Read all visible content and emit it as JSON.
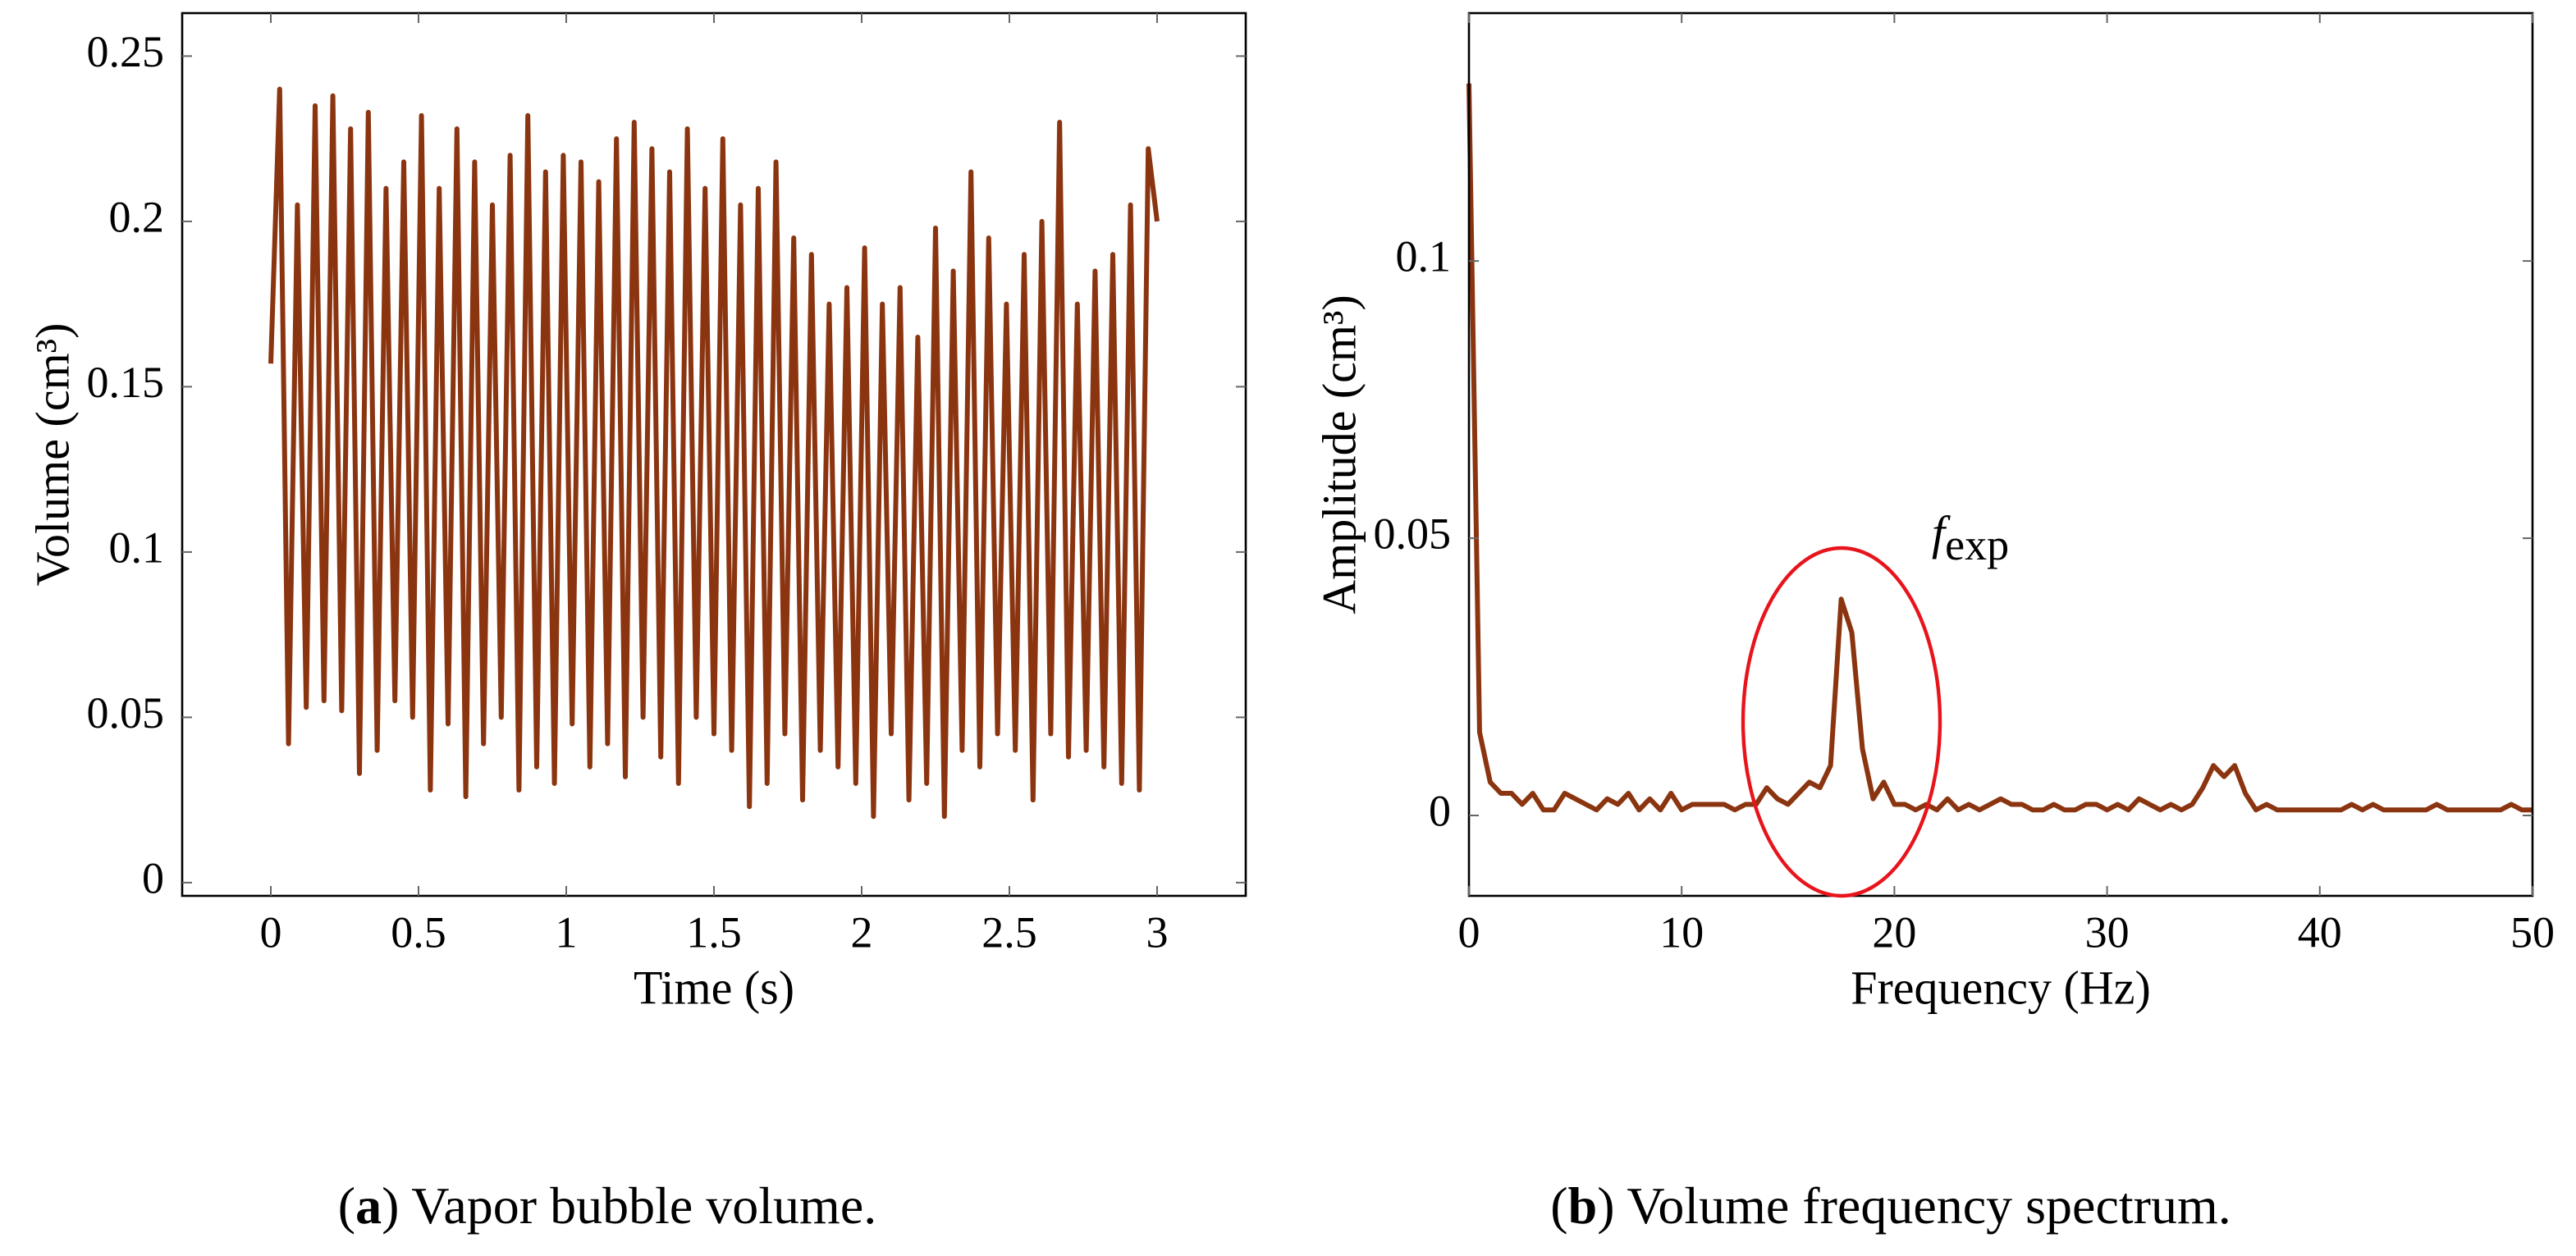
{
  "chart_data": [
    {
      "type": "line",
      "xlabel": "Time (s)",
      "ylabel": "Volume (cm³)",
      "color": "#8b3410",
      "caption": [
        "(",
        "a",
        ") Vapor bubble volume."
      ],
      "xlim": [
        -0.3,
        3.3
      ],
      "ylim": [
        -0.004,
        0.263
      ],
      "xticks": [
        0,
        0.5,
        1,
        1.5,
        2,
        2.5,
        3
      ],
      "yticks": [
        0,
        0.05,
        0.1,
        0.15,
        0.2,
        0.25
      ],
      "x": [
        0,
        0.03,
        0.06,
        0.09,
        0.12,
        0.15,
        0.18,
        0.21,
        0.24,
        0.27,
        0.3,
        0.33,
        0.36,
        0.39,
        0.42,
        0.45,
        0.48,
        0.51,
        0.54,
        0.57,
        0.6,
        0.63,
        0.66,
        0.69,
        0.72,
        0.75,
        0.78,
        0.81,
        0.84,
        0.87,
        0.9,
        0.93,
        0.96,
        0.99,
        1.02,
        1.05,
        1.08,
        1.11,
        1.14,
        1.17,
        1.2,
        1.23,
        1.26,
        1.29,
        1.32,
        1.35,
        1.38,
        1.41,
        1.44,
        1.47,
        1.5,
        1.53,
        1.56,
        1.59,
        1.62,
        1.65,
        1.68,
        1.71,
        1.74,
        1.77,
        1.8,
        1.83,
        1.86,
        1.89,
        1.92,
        1.95,
        1.98,
        2.01,
        2.04,
        2.07,
        2.1,
        2.13,
        2.16,
        2.19,
        2.22,
        2.25,
        2.28,
        2.31,
        2.34,
        2.37,
        2.4,
        2.43,
        2.46,
        2.49,
        2.52,
        2.55,
        2.58,
        2.61,
        2.64,
        2.67,
        2.7,
        2.73,
        2.76,
        2.79,
        2.82,
        2.85,
        2.88,
        2.91,
        2.94,
        2.97,
        3
      ],
      "values": [
        0.157,
        0.24,
        0.042,
        0.205,
        0.053,
        0.235,
        0.055,
        0.238,
        0.052,
        0.228,
        0.033,
        0.233,
        0.04,
        0.21,
        0.055,
        0.218,
        0.05,
        0.232,
        0.028,
        0.21,
        0.048,
        0.228,
        0.026,
        0.218,
        0.042,
        0.205,
        0.05,
        0.22,
        0.028,
        0.232,
        0.035,
        0.215,
        0.03,
        0.22,
        0.048,
        0.218,
        0.035,
        0.212,
        0.042,
        0.225,
        0.032,
        0.23,
        0.05,
        0.222,
        0.038,
        0.215,
        0.03,
        0.228,
        0.05,
        0.21,
        0.045,
        0.225,
        0.04,
        0.205,
        0.023,
        0.21,
        0.03,
        0.218,
        0.045,
        0.195,
        0.025,
        0.19,
        0.04,
        0.175,
        0.035,
        0.18,
        0.03,
        0.192,
        0.02,
        0.175,
        0.045,
        0.18,
        0.025,
        0.165,
        0.03,
        0.198,
        0.02,
        0.185,
        0.04,
        0.215,
        0.035,
        0.195,
        0.045,
        0.175,
        0.04,
        0.19,
        0.025,
        0.2,
        0.045,
        0.23,
        0.038,
        0.175,
        0.04,
        0.185,
        0.035,
        0.19,
        0.03,
        0.205,
        0.028,
        0.222,
        0.2
      ]
    },
    {
      "type": "line",
      "xlabel": "Frequency (Hz)",
      "ylabel": "Amplitude (cm³)",
      "color": "#8b3410",
      "caption": [
        "(",
        "b",
        ") Volume frequency spectrum."
      ],
      "annotation": "f",
      "annotation_subscript": "exp",
      "xlim": [
        0,
        50
      ],
      "ylim": [
        -0.0145,
        0.1447
      ],
      "xticks": [
        0,
        10,
        20,
        30,
        40,
        50
      ],
      "yticks": [
        0,
        0.05,
        0.1
      ],
      "x": [
        0,
        0.5,
        1,
        1.5,
        2,
        2.5,
        3,
        3.5,
        4,
        4.5,
        5,
        5.5,
        6,
        6.5,
        7,
        7.5,
        8,
        8.5,
        9,
        9.5,
        10,
        10.5,
        11,
        11.5,
        12,
        12.5,
        13,
        13.5,
        14,
        14.5,
        15,
        15.5,
        16,
        16.5,
        17,
        17.5,
        18,
        18.5,
        19,
        19.5,
        20,
        20.5,
        21,
        21.5,
        22,
        22.5,
        23,
        23.5,
        24,
        24.5,
        25,
        25.5,
        26,
        26.5,
        27,
        27.5,
        28,
        28.5,
        29,
        29.5,
        30,
        30.5,
        31,
        31.5,
        32,
        32.5,
        33,
        33.5,
        34,
        34.5,
        35,
        35.5,
        36,
        36.5,
        37,
        37.5,
        38,
        38.5,
        39,
        39.5,
        40,
        40.5,
        41,
        41.5,
        42,
        42.5,
        43,
        43.5,
        44,
        44.5,
        45,
        45.5,
        46,
        46.5,
        47,
        47.5,
        48,
        48.5,
        49,
        49.5,
        50
      ],
      "values": [
        0.132,
        0.015,
        0.006,
        0.004,
        0.004,
        0.002,
        0.004,
        0.001,
        0.001,
        0.004,
        0.003,
        0.002,
        0.001,
        0.003,
        0.002,
        0.004,
        0.001,
        0.003,
        0.001,
        0.004,
        0.001,
        0.002,
        0.002,
        0.002,
        0.002,
        0.001,
        0.002,
        0.002,
        0.005,
        0.003,
        0.002,
        0.004,
        0.006,
        0.005,
        0.009,
        0.039,
        0.033,
        0.012,
        0.003,
        0.006,
        0.002,
        0.002,
        0.001,
        0.002,
        0.001,
        0.003,
        0.001,
        0.002,
        0.001,
        0.002,
        0.003,
        0.002,
        0.002,
        0.001,
        0.001,
        0.002,
        0.001,
        0.001,
        0.002,
        0.002,
        0.001,
        0.002,
        0.001,
        0.003,
        0.002,
        0.001,
        0.002,
        0.001,
        0.002,
        0.005,
        0.009,
        0.007,
        0.009,
        0.004,
        0.001,
        0.002,
        0.001,
        0.001,
        0.001,
        0.001,
        0.001,
        0.001,
        0.001,
        0.002,
        0.001,
        0.002,
        0.001,
        0.001,
        0.001,
        0.001,
        0.001,
        0.002,
        0.001,
        0.001,
        0.001,
        0.001,
        0.001,
        0.001,
        0.002,
        0.001,
        0.001
      ]
    }
  ]
}
